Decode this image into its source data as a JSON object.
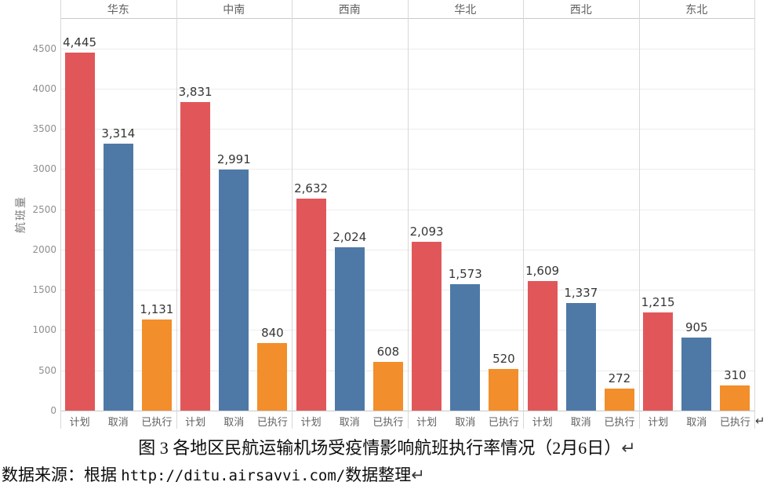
{
  "chart_data": {
    "type": "bar",
    "title": "各地区民航运输机场受疫情影响航班执行率情况（2月6日）",
    "ylabel": "航班量",
    "xlabel": "",
    "ylim": [
      0,
      4875
    ],
    "yticks": [
      0,
      500,
      1000,
      1500,
      2000,
      2500,
      3000,
      3500,
      4000,
      4500
    ],
    "grid": true,
    "legend_position": "none",
    "regions": [
      "华东",
      "中南",
      "西南",
      "华北",
      "西北",
      "东北"
    ],
    "categories": [
      "计划",
      "取消",
      "已执行"
    ],
    "series": [
      {
        "name": "计划",
        "color": "#e15759",
        "values": [
          4445,
          3831,
          2632,
          2093,
          1609,
          1215
        ],
        "labels": [
          "4,445",
          "3,831",
          "2,632",
          "2,093",
          "1,609",
          "1,215"
        ]
      },
      {
        "name": "取消",
        "color": "#4e79a7",
        "values": [
          3314,
          2991,
          2024,
          1573,
          1337,
          905
        ],
        "labels": [
          "3,314",
          "2,991",
          "2,024",
          "1,573",
          "1,337",
          "905"
        ]
      },
      {
        "name": "已执行",
        "color": "#f28e2b",
        "values": [
          1131,
          840,
          608,
          520,
          272,
          310
        ],
        "labels": [
          "1,131",
          "840",
          "608",
          "520",
          "272",
          "310"
        ]
      }
    ]
  },
  "marks": {
    "after_chart": "↵"
  },
  "caption": {
    "text": "图 3 各地区民航运输机场受疫情影响航班执行率情况（2月6日）",
    "return_mark": "↵"
  },
  "source": {
    "prefix": "数据来源：根据 ",
    "url": "http://ditu.airsavvi.com/",
    "suffix": "数据整理",
    "return_mark": "↵"
  }
}
